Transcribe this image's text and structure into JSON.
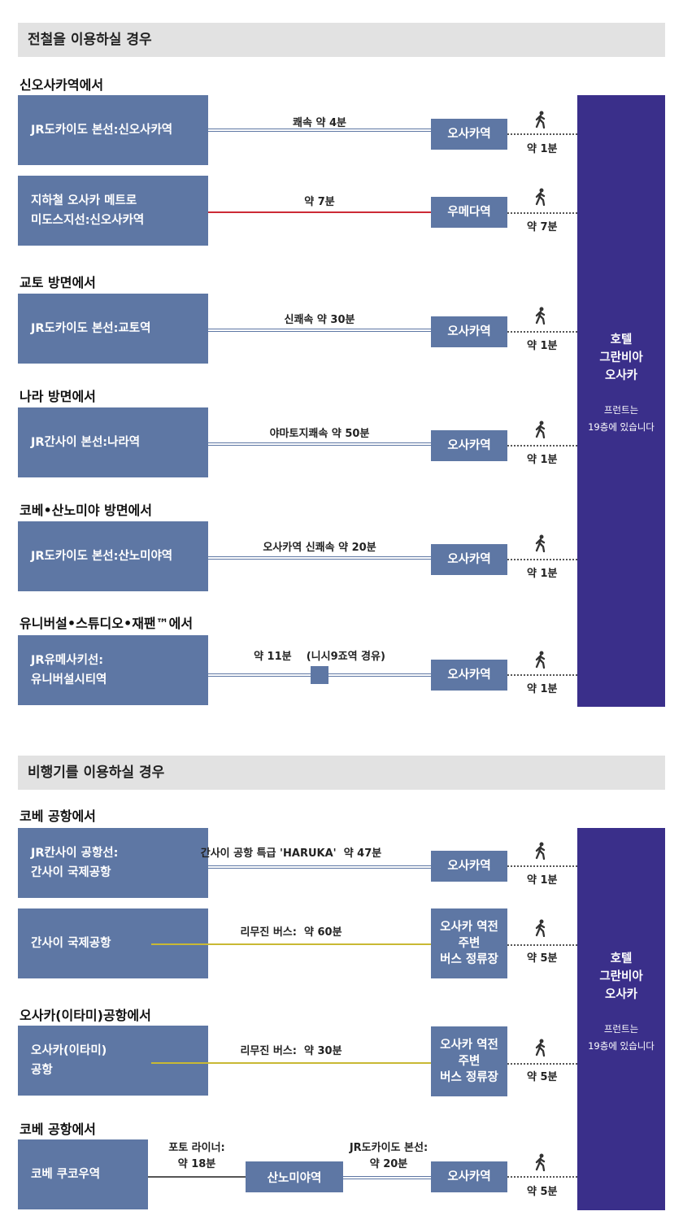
{
  "rail": {
    "title": "전철을 이용하실 경우",
    "groups": [
      {
        "label": "신오사카역에서"
      },
      {
        "label": "교토 방면에서"
      },
      {
        "label": "나라 방면에서"
      },
      {
        "label": "코베•산노미야 방면에서"
      },
      {
        "label": "유니버설•스튜디오•재팬™에서"
      }
    ],
    "routes": [
      {
        "origin": "JR도카이도 본선:신오사카역",
        "label": "쾌속 약 4분",
        "dest": "오사카역",
        "walk": "약 1분"
      },
      {
        "origin": "지하철 오사카 메트로\n미도스지선:신오사카역",
        "label": "약 7분",
        "dest": "우메다역",
        "walk": "약 7분"
      },
      {
        "origin": "JR도카이도 본선:교토역",
        "label": "신쾌속 약 30분",
        "dest": "오사카역",
        "walk": "약 1분"
      },
      {
        "origin": "JR간사이 본선:나라역",
        "label": "야마토지쾌속 약 50분",
        "dest": "오사카역",
        "walk": "약 1분"
      },
      {
        "origin": "JR도카이도 본선:산노미야역",
        "label": "오사카역 신쾌속 약 20분",
        "dest": "오사카역",
        "walk": "약 1분"
      },
      {
        "origin": "JR유메사키선:\n유니버설시티역",
        "label": "약 11분    (니시9죠역 경유)",
        "dest": "오사카역",
        "walk": "약 1분"
      }
    ],
    "hotel": {
      "name": "호텔\n그란비아\n오사카",
      "front": "프런트는\n19층에 있습니다"
    }
  },
  "air": {
    "title": "비행기를 이용하실 경우",
    "groups": [
      {
        "label": "코베 공항에서"
      },
      {
        "label": "오사카(이타미)공항에서"
      },
      {
        "label": "코베 공항에서"
      }
    ],
    "routes": [
      {
        "origin": "JR칸사이 공항선:\n간사이 국제공항",
        "label": "간사이 공항 특급 'HARUKA'  약 47분",
        "dest": "오사카역",
        "walk": "약 1분"
      },
      {
        "origin": "간사이 국제공항",
        "label": "리무진 버스:  약 60분",
        "dest": "오사카 역전\n주변\n버스 정류장",
        "walk": "약 5분"
      },
      {
        "origin": "오사카(이타미)\n공항",
        "label": "리무진 버스:  약 30분",
        "dest": "오사카 역전\n주변\n버스 정류장",
        "walk": "약 5분"
      },
      {
        "origin": "코베 쿠코우역",
        "label": "포토 라이너:\n약 18분",
        "mid": "산노미야역",
        "label2": "JR도카이도 본선:\n약 20분",
        "dest": "오사카역",
        "walk": "약 5분"
      }
    ],
    "hotel": {
      "name": "호텔\n그란비아\n오사카",
      "front": "프런트는\n19층에 있습니다"
    }
  },
  "colors": {
    "box": "#5e77a4",
    "hotel": "#3a2f8a",
    "red_line": "#cc2a36",
    "yellow_line": "#c9b934"
  }
}
